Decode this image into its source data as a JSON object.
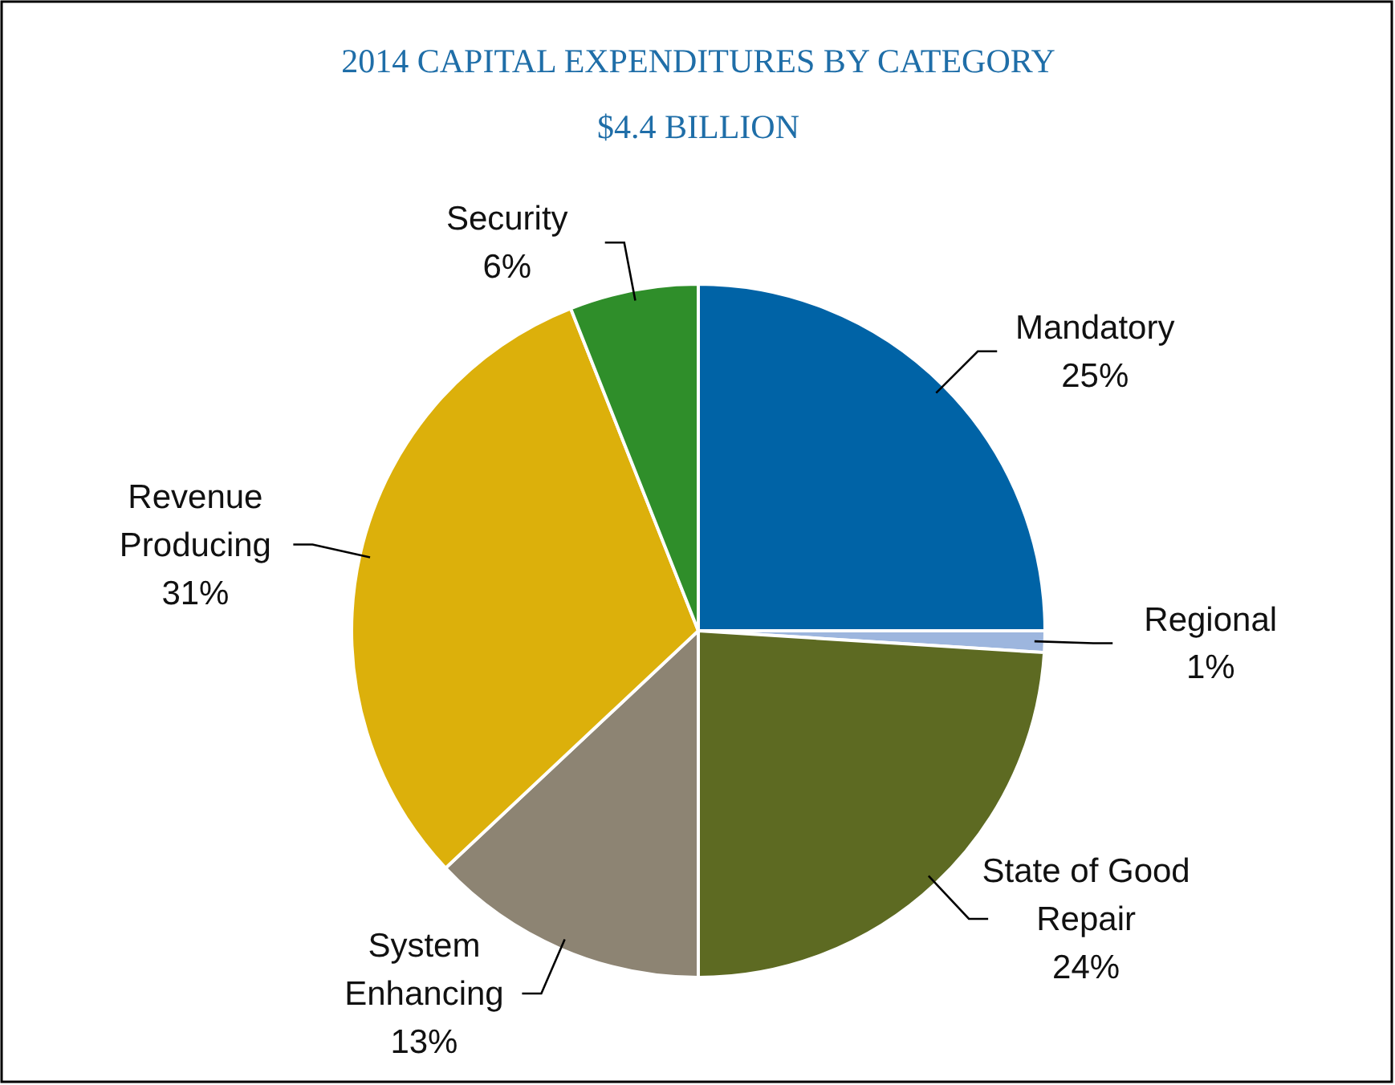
{
  "chart_data": {
    "type": "pie",
    "title": "2014 CAPITAL EXPENDITURES BY CATEGORY",
    "subtitle": "$4.4 BILLION",
    "categories": [
      "Mandatory",
      "Regional",
      "State of Good Repair",
      "System Enhancing",
      "Revenue Producing",
      "Security"
    ],
    "values": [
      25,
      1,
      24,
      13,
      31,
      6
    ],
    "value_labels": [
      "25%",
      "1%",
      "24%",
      "13%",
      "31%",
      "6%"
    ],
    "colors": [
      "#0063a6",
      "#9db6de",
      "#5d6a22",
      "#8d8473",
      "#dcb00b",
      "#2f8e2a"
    ]
  }
}
